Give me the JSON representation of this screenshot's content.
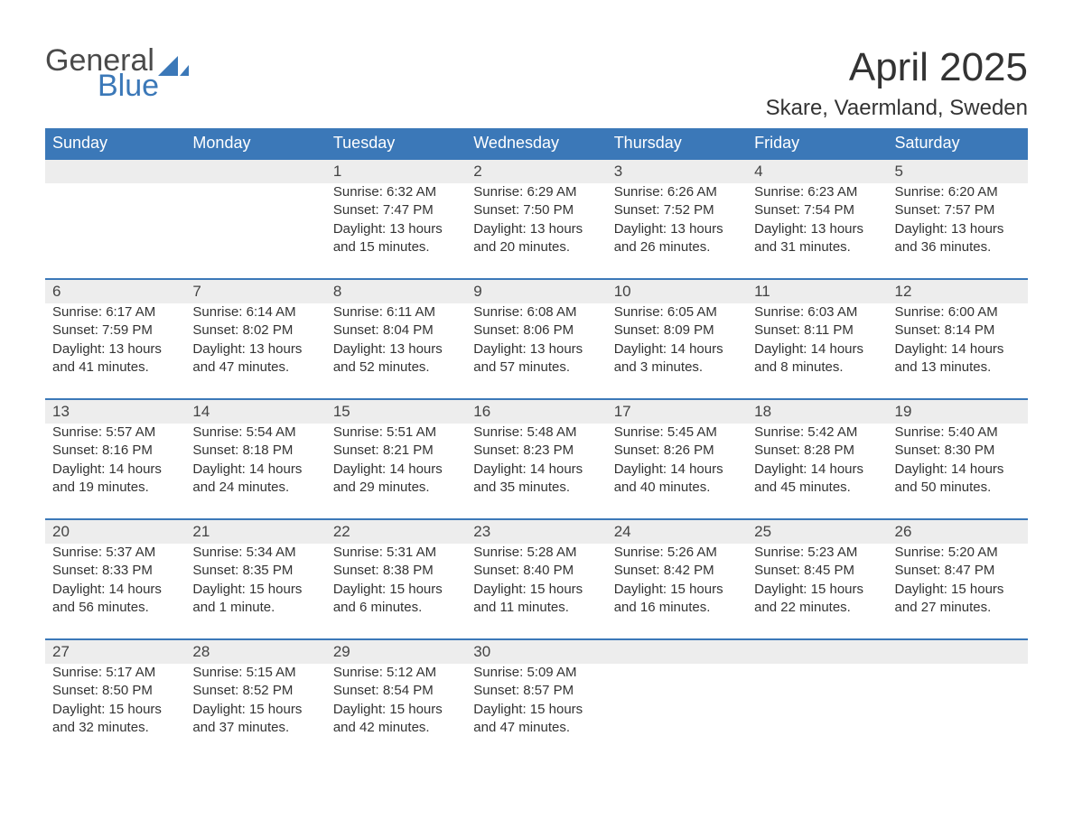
{
  "logo": {
    "general": "General",
    "blue": "Blue"
  },
  "title": "April 2025",
  "location": "Skare, Vaermland, Sweden",
  "colors": {
    "header_bg": "#3b78b8",
    "header_text": "#ffffff",
    "daynum_bg": "#ededed",
    "border": "#3b78b8",
    "text": "#333333",
    "background": "#ffffff"
  },
  "weekdays": [
    "Sunday",
    "Monday",
    "Tuesday",
    "Wednesday",
    "Thursday",
    "Friday",
    "Saturday"
  ],
  "weeks": [
    {
      "nums": [
        "",
        "",
        "1",
        "2",
        "3",
        "4",
        "5"
      ],
      "details": [
        null,
        null,
        {
          "sunrise": "Sunrise: 6:32 AM",
          "sunset": "Sunset: 7:47 PM",
          "daylight": "Daylight: 13 hours and 15 minutes."
        },
        {
          "sunrise": "Sunrise: 6:29 AM",
          "sunset": "Sunset: 7:50 PM",
          "daylight": "Daylight: 13 hours and 20 minutes."
        },
        {
          "sunrise": "Sunrise: 6:26 AM",
          "sunset": "Sunset: 7:52 PM",
          "daylight": "Daylight: 13 hours and 26 minutes."
        },
        {
          "sunrise": "Sunrise: 6:23 AM",
          "sunset": "Sunset: 7:54 PM",
          "daylight": "Daylight: 13 hours and 31 minutes."
        },
        {
          "sunrise": "Sunrise: 6:20 AM",
          "sunset": "Sunset: 7:57 PM",
          "daylight": "Daylight: 13 hours and 36 minutes."
        }
      ]
    },
    {
      "nums": [
        "6",
        "7",
        "8",
        "9",
        "10",
        "11",
        "12"
      ],
      "details": [
        {
          "sunrise": "Sunrise: 6:17 AM",
          "sunset": "Sunset: 7:59 PM",
          "daylight": "Daylight: 13 hours and 41 minutes."
        },
        {
          "sunrise": "Sunrise: 6:14 AM",
          "sunset": "Sunset: 8:02 PM",
          "daylight": "Daylight: 13 hours and 47 minutes."
        },
        {
          "sunrise": "Sunrise: 6:11 AM",
          "sunset": "Sunset: 8:04 PM",
          "daylight": "Daylight: 13 hours and 52 minutes."
        },
        {
          "sunrise": "Sunrise: 6:08 AM",
          "sunset": "Sunset: 8:06 PM",
          "daylight": "Daylight: 13 hours and 57 minutes."
        },
        {
          "sunrise": "Sunrise: 6:05 AM",
          "sunset": "Sunset: 8:09 PM",
          "daylight": "Daylight: 14 hours and 3 minutes."
        },
        {
          "sunrise": "Sunrise: 6:03 AM",
          "sunset": "Sunset: 8:11 PM",
          "daylight": "Daylight: 14 hours and 8 minutes."
        },
        {
          "sunrise": "Sunrise: 6:00 AM",
          "sunset": "Sunset: 8:14 PM",
          "daylight": "Daylight: 14 hours and 13 minutes."
        }
      ]
    },
    {
      "nums": [
        "13",
        "14",
        "15",
        "16",
        "17",
        "18",
        "19"
      ],
      "details": [
        {
          "sunrise": "Sunrise: 5:57 AM",
          "sunset": "Sunset: 8:16 PM",
          "daylight": "Daylight: 14 hours and 19 minutes."
        },
        {
          "sunrise": "Sunrise: 5:54 AM",
          "sunset": "Sunset: 8:18 PM",
          "daylight": "Daylight: 14 hours and 24 minutes."
        },
        {
          "sunrise": "Sunrise: 5:51 AM",
          "sunset": "Sunset: 8:21 PM",
          "daylight": "Daylight: 14 hours and 29 minutes."
        },
        {
          "sunrise": "Sunrise: 5:48 AM",
          "sunset": "Sunset: 8:23 PM",
          "daylight": "Daylight: 14 hours and 35 minutes."
        },
        {
          "sunrise": "Sunrise: 5:45 AM",
          "sunset": "Sunset: 8:26 PM",
          "daylight": "Daylight: 14 hours and 40 minutes."
        },
        {
          "sunrise": "Sunrise: 5:42 AM",
          "sunset": "Sunset: 8:28 PM",
          "daylight": "Daylight: 14 hours and 45 minutes."
        },
        {
          "sunrise": "Sunrise: 5:40 AM",
          "sunset": "Sunset: 8:30 PM",
          "daylight": "Daylight: 14 hours and 50 minutes."
        }
      ]
    },
    {
      "nums": [
        "20",
        "21",
        "22",
        "23",
        "24",
        "25",
        "26"
      ],
      "details": [
        {
          "sunrise": "Sunrise: 5:37 AM",
          "sunset": "Sunset: 8:33 PM",
          "daylight": "Daylight: 14 hours and 56 minutes."
        },
        {
          "sunrise": "Sunrise: 5:34 AM",
          "sunset": "Sunset: 8:35 PM",
          "daylight": "Daylight: 15 hours and 1 minute."
        },
        {
          "sunrise": "Sunrise: 5:31 AM",
          "sunset": "Sunset: 8:38 PM",
          "daylight": "Daylight: 15 hours and 6 minutes."
        },
        {
          "sunrise": "Sunrise: 5:28 AM",
          "sunset": "Sunset: 8:40 PM",
          "daylight": "Daylight: 15 hours and 11 minutes."
        },
        {
          "sunrise": "Sunrise: 5:26 AM",
          "sunset": "Sunset: 8:42 PM",
          "daylight": "Daylight: 15 hours and 16 minutes."
        },
        {
          "sunrise": "Sunrise: 5:23 AM",
          "sunset": "Sunset: 8:45 PM",
          "daylight": "Daylight: 15 hours and 22 minutes."
        },
        {
          "sunrise": "Sunrise: 5:20 AM",
          "sunset": "Sunset: 8:47 PM",
          "daylight": "Daylight: 15 hours and 27 minutes."
        }
      ]
    },
    {
      "nums": [
        "27",
        "28",
        "29",
        "30",
        "",
        "",
        ""
      ],
      "details": [
        {
          "sunrise": "Sunrise: 5:17 AM",
          "sunset": "Sunset: 8:50 PM",
          "daylight": "Daylight: 15 hours and 32 minutes."
        },
        {
          "sunrise": "Sunrise: 5:15 AM",
          "sunset": "Sunset: 8:52 PM",
          "daylight": "Daylight: 15 hours and 37 minutes."
        },
        {
          "sunrise": "Sunrise: 5:12 AM",
          "sunset": "Sunset: 8:54 PM",
          "daylight": "Daylight: 15 hours and 42 minutes."
        },
        {
          "sunrise": "Sunrise: 5:09 AM",
          "sunset": "Sunset: 8:57 PM",
          "daylight": "Daylight: 15 hours and 47 minutes."
        },
        null,
        null,
        null
      ]
    }
  ]
}
